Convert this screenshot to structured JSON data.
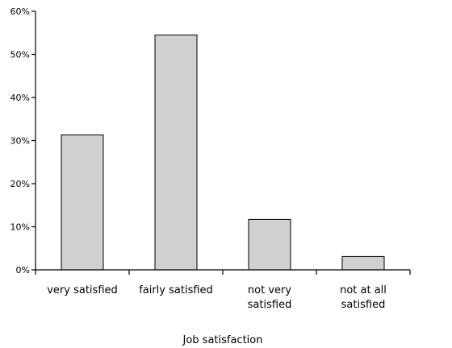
{
  "chart_data": {
    "type": "bar",
    "categories": [
      "very satisfied",
      "fairly satisfied",
      "not very satisfied",
      "not at all satisfied"
    ],
    "category_lines": [
      [
        "very satisfied"
      ],
      [
        "fairly satisfied"
      ],
      [
        "not very",
        "satisfied"
      ],
      [
        "not at all",
        "satisfied"
      ]
    ],
    "values": [
      31.3,
      54.5,
      11.7,
      3.1
    ],
    "xlabel": "Job satisfaction",
    "ylabel": "",
    "ylim": [
      0,
      60
    ],
    "yticks": [
      0,
      10,
      20,
      30,
      40,
      50,
      60
    ],
    "ytick_labels": [
      "0%",
      "10%",
      "20%",
      "30%",
      "40%",
      "50%",
      "60%"
    ],
    "bar_color": "#d0d0d0",
    "grid": false,
    "legend": "none"
  }
}
